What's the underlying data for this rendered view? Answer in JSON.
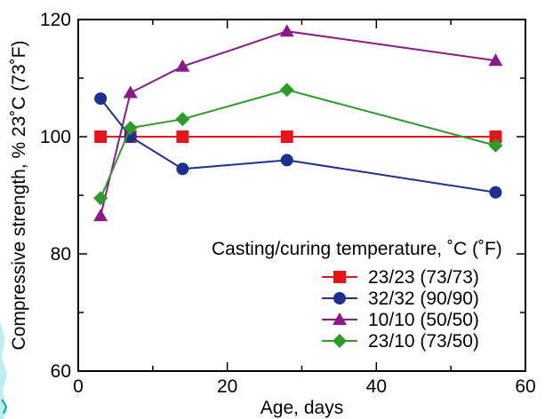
{
  "chart_data": {
    "type": "line",
    "xlabel": "Age, days",
    "ylabel": "Compressive strength, % 23˚C (73˚F)",
    "xlim": [
      0,
      60
    ],
    "ylim": [
      60,
      120
    ],
    "xticks": [
      0,
      20,
      40,
      60
    ],
    "yticks": [
      60,
      80,
      100,
      120
    ],
    "grid": false,
    "legend_title": "Casting/curing temperature, ˚C (˚F)",
    "legend_position": "lower-right",
    "series": [
      {
        "name": "23/23 (73/73)",
        "color": "#e8141b",
        "marker": "square",
        "x": [
          3,
          7,
          14,
          28,
          56
        ],
        "y": [
          100,
          100,
          100,
          100,
          100
        ]
      },
      {
        "name": "32/32 (90/90)",
        "color": "#1d2f8f",
        "marker": "circle",
        "x": [
          3,
          7,
          14,
          28,
          56
        ],
        "y": [
          106.5,
          100,
          94.5,
          96,
          90.5
        ]
      },
      {
        "name": "10/10 (50/50)",
        "color": "#8a1a8a",
        "marker": "triangle",
        "x": [
          3,
          7,
          14,
          28,
          56
        ],
        "y": [
          86.5,
          107.5,
          112,
          118,
          113
        ]
      },
      {
        "name": "23/10 (73/50)",
        "color": "#2e9a2a",
        "marker": "diamond",
        "x": [
          3,
          7,
          14,
          28,
          56
        ],
        "y": [
          89.5,
          101.5,
          103,
          108,
          98.5
        ]
      }
    ]
  }
}
